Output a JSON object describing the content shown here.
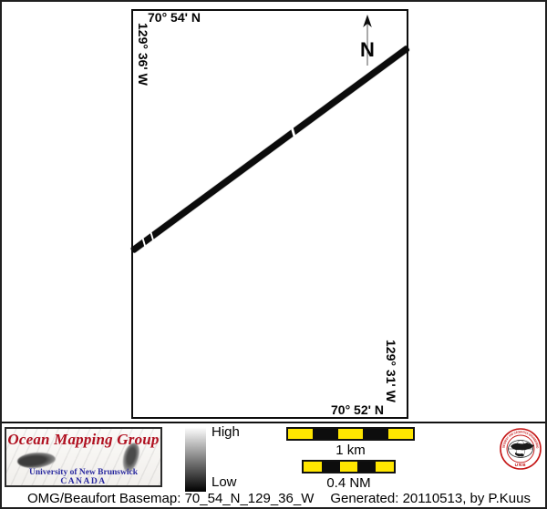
{
  "map": {
    "top_latitude": "70° 54' N",
    "left_longitude": "129° 36' W",
    "right_longitude": "129° 31' W",
    "bottom_latitude": "70° 52' N",
    "north_arrow_label": "N"
  },
  "legend": {
    "colorbar": {
      "high_label": "High",
      "low_label": "Low",
      "top_color": "#ffffff",
      "bottom_color": "#000000"
    },
    "scalebars": [
      {
        "label": "1 km",
        "segments": 5,
        "colors": [
          "#ffe600",
          "#0d0d0d"
        ]
      },
      {
        "label": "0.4 NM",
        "segments": 5,
        "colors": [
          "#ffe600",
          "#0d0d0d"
        ]
      }
    ]
  },
  "logo": {
    "title": "Ocean Mapping Group",
    "subtitle": "University of New Brunswick",
    "country": "CANADA",
    "title_color": "#b01020",
    "text_color": "#2a2aa0"
  },
  "seal": {
    "ring_text": "GEODESY AND GEOMATICS ENGINEERING",
    "unb": "UNB",
    "color": "#c41414"
  },
  "caption": {
    "basemap": "OMG/Beaufort Basemap: 70_54_N_129_36_W",
    "generated": "Generated: 20110513, by P.Kuus"
  },
  "colors": {
    "track": "#0b0b0b",
    "frame": "#0d0d0d",
    "scalebar_yellow": "#ffe600"
  }
}
